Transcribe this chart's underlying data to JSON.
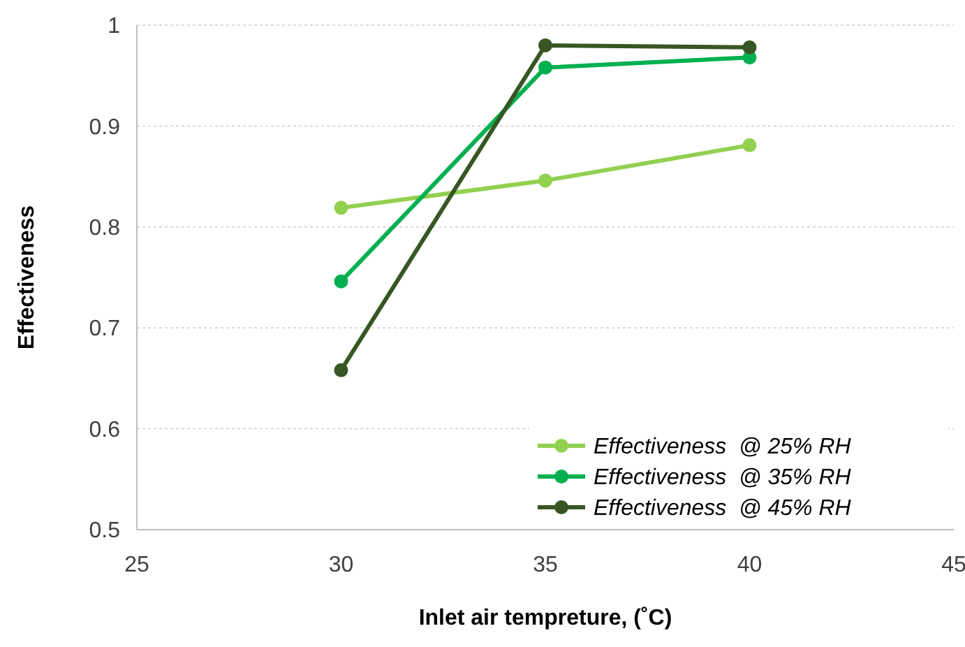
{
  "chart_data": {
    "type": "line",
    "xlabel": "Inlet air tempreture, (˚C)",
    "ylabel": "Effectiveness",
    "x": [
      30,
      35,
      40
    ],
    "series": [
      {
        "name": "Effectiveness  @ 25% RH",
        "color": "#92d050",
        "values": [
          0.819,
          0.846,
          0.881
        ]
      },
      {
        "name": "Effectiveness  @ 35% RH",
        "color": "#00b050",
        "values": [
          0.746,
          0.958,
          0.968
        ]
      },
      {
        "name": "Effectiveness  @ 45% RH",
        "color": "#375623",
        "values": [
          0.658,
          0.98,
          0.978
        ]
      }
    ],
    "xlim": [
      25,
      45
    ],
    "xticks": [
      25,
      30,
      35,
      40,
      45
    ],
    "ylim": [
      0.5,
      1
    ],
    "yticks": [
      0.5,
      0.6,
      0.7,
      0.8,
      0.9,
      1
    ],
    "grid": "y",
    "legend": "bottom right",
    "marker": "circle",
    "line_style": "solid"
  }
}
